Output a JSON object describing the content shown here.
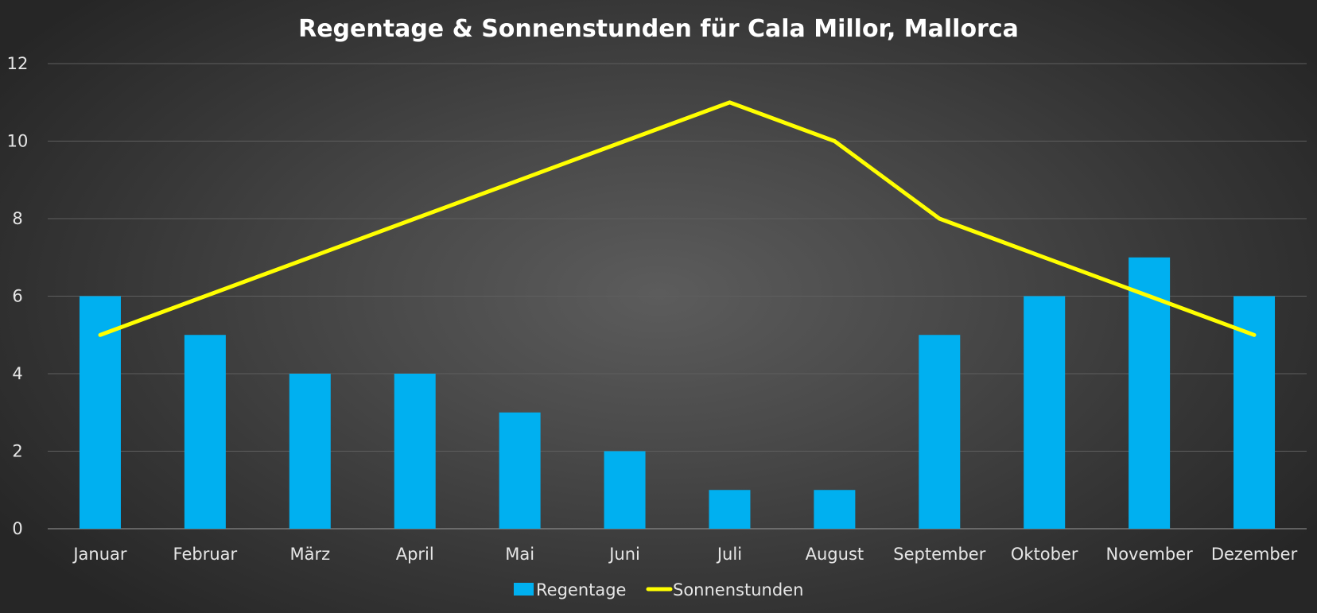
{
  "chart_data": {
    "type": "bar",
    "title": "Regentage & Sonnenstunden für Cala Millor, Mallorca",
    "xlabel": "",
    "ylabel": "",
    "ylim": [
      0,
      12
    ],
    "yticks": [
      0,
      2,
      4,
      6,
      8,
      10,
      12
    ],
    "categories": [
      "Januar",
      "Februar",
      "März",
      "April",
      "Mai",
      "Juni",
      "Juli",
      "August",
      "September",
      "Oktober",
      "November",
      "Dezember"
    ],
    "series": [
      {
        "name": "Regentage",
        "type": "bar",
        "color": "#00b0f0",
        "values": [
          6,
          5,
          4,
          4,
          3,
          2,
          1,
          1,
          5,
          6,
          7,
          6
        ]
      },
      {
        "name": "Sonnenstunden",
        "type": "line",
        "color": "#ffff00",
        "values": [
          5,
          6,
          7,
          8,
          9,
          10,
          11,
          10,
          8,
          7,
          6,
          5
        ]
      }
    ],
    "grid": true,
    "legend": "bottom-center"
  }
}
